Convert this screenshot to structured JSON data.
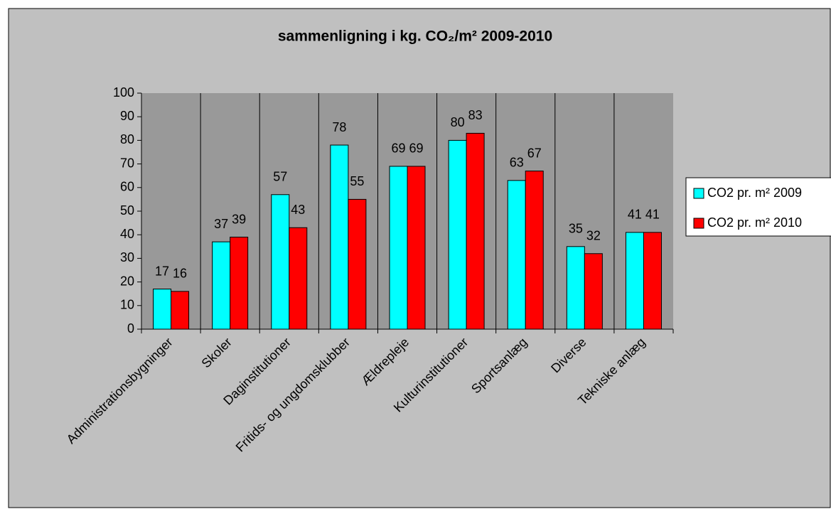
{
  "chart_data": {
    "type": "bar",
    "title": "sammenligning i kg. CO₂/m² 2009-2010",
    "categories": [
      "Administrationsbygninger",
      "Skoler",
      "Daginstitutioner",
      "Fritids- og ungdomsklubber",
      "Ældrepleje",
      "Kulturinstitutioner",
      "Sportsanlæg",
      "Diverse",
      "Tekniske anlæg"
    ],
    "series": [
      {
        "name": "CO2 pr. m² 2009",
        "color": "#00ffff",
        "values": [
          17,
          37,
          57,
          78,
          69,
          80,
          63,
          35,
          41
        ]
      },
      {
        "name": "CO2 pr. m² 2010",
        "color": "#ff0000",
        "values": [
          16,
          39,
          43,
          55,
          69,
          83,
          67,
          32,
          41
        ]
      }
    ],
    "ylim": [
      0,
      100
    ],
    "yticks": [
      0,
      10,
      20,
      30,
      40,
      50,
      60,
      70,
      80,
      90,
      100
    ],
    "grid": false,
    "legend": "right"
  }
}
